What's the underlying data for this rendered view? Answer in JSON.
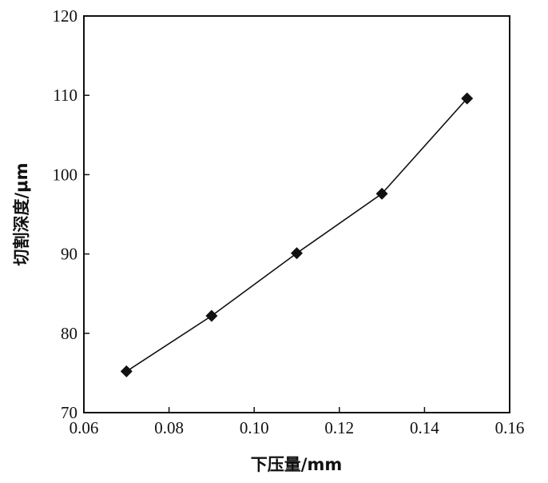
{
  "chart_data": {
    "type": "line",
    "title": "",
    "xlabel": "下压量/mm",
    "ylabel": "切割深度/μm",
    "xlim": [
      0.06,
      0.16
    ],
    "ylim": [
      70,
      120
    ],
    "x_ticks": [
      "0.06",
      "0.08",
      "0.10",
      "0.12",
      "0.14",
      "0.16"
    ],
    "y_ticks": [
      "70",
      "80",
      "90",
      "100",
      "110",
      "120"
    ],
    "grid": false,
    "legend": "none",
    "marker": "diamond",
    "line_color": "#111111",
    "series": [
      {
        "x": [
          0.07,
          0.09,
          0.11,
          0.13,
          0.15
        ],
        "y": [
          75.2,
          82.2,
          90.1,
          97.6,
          109.6
        ]
      }
    ]
  }
}
